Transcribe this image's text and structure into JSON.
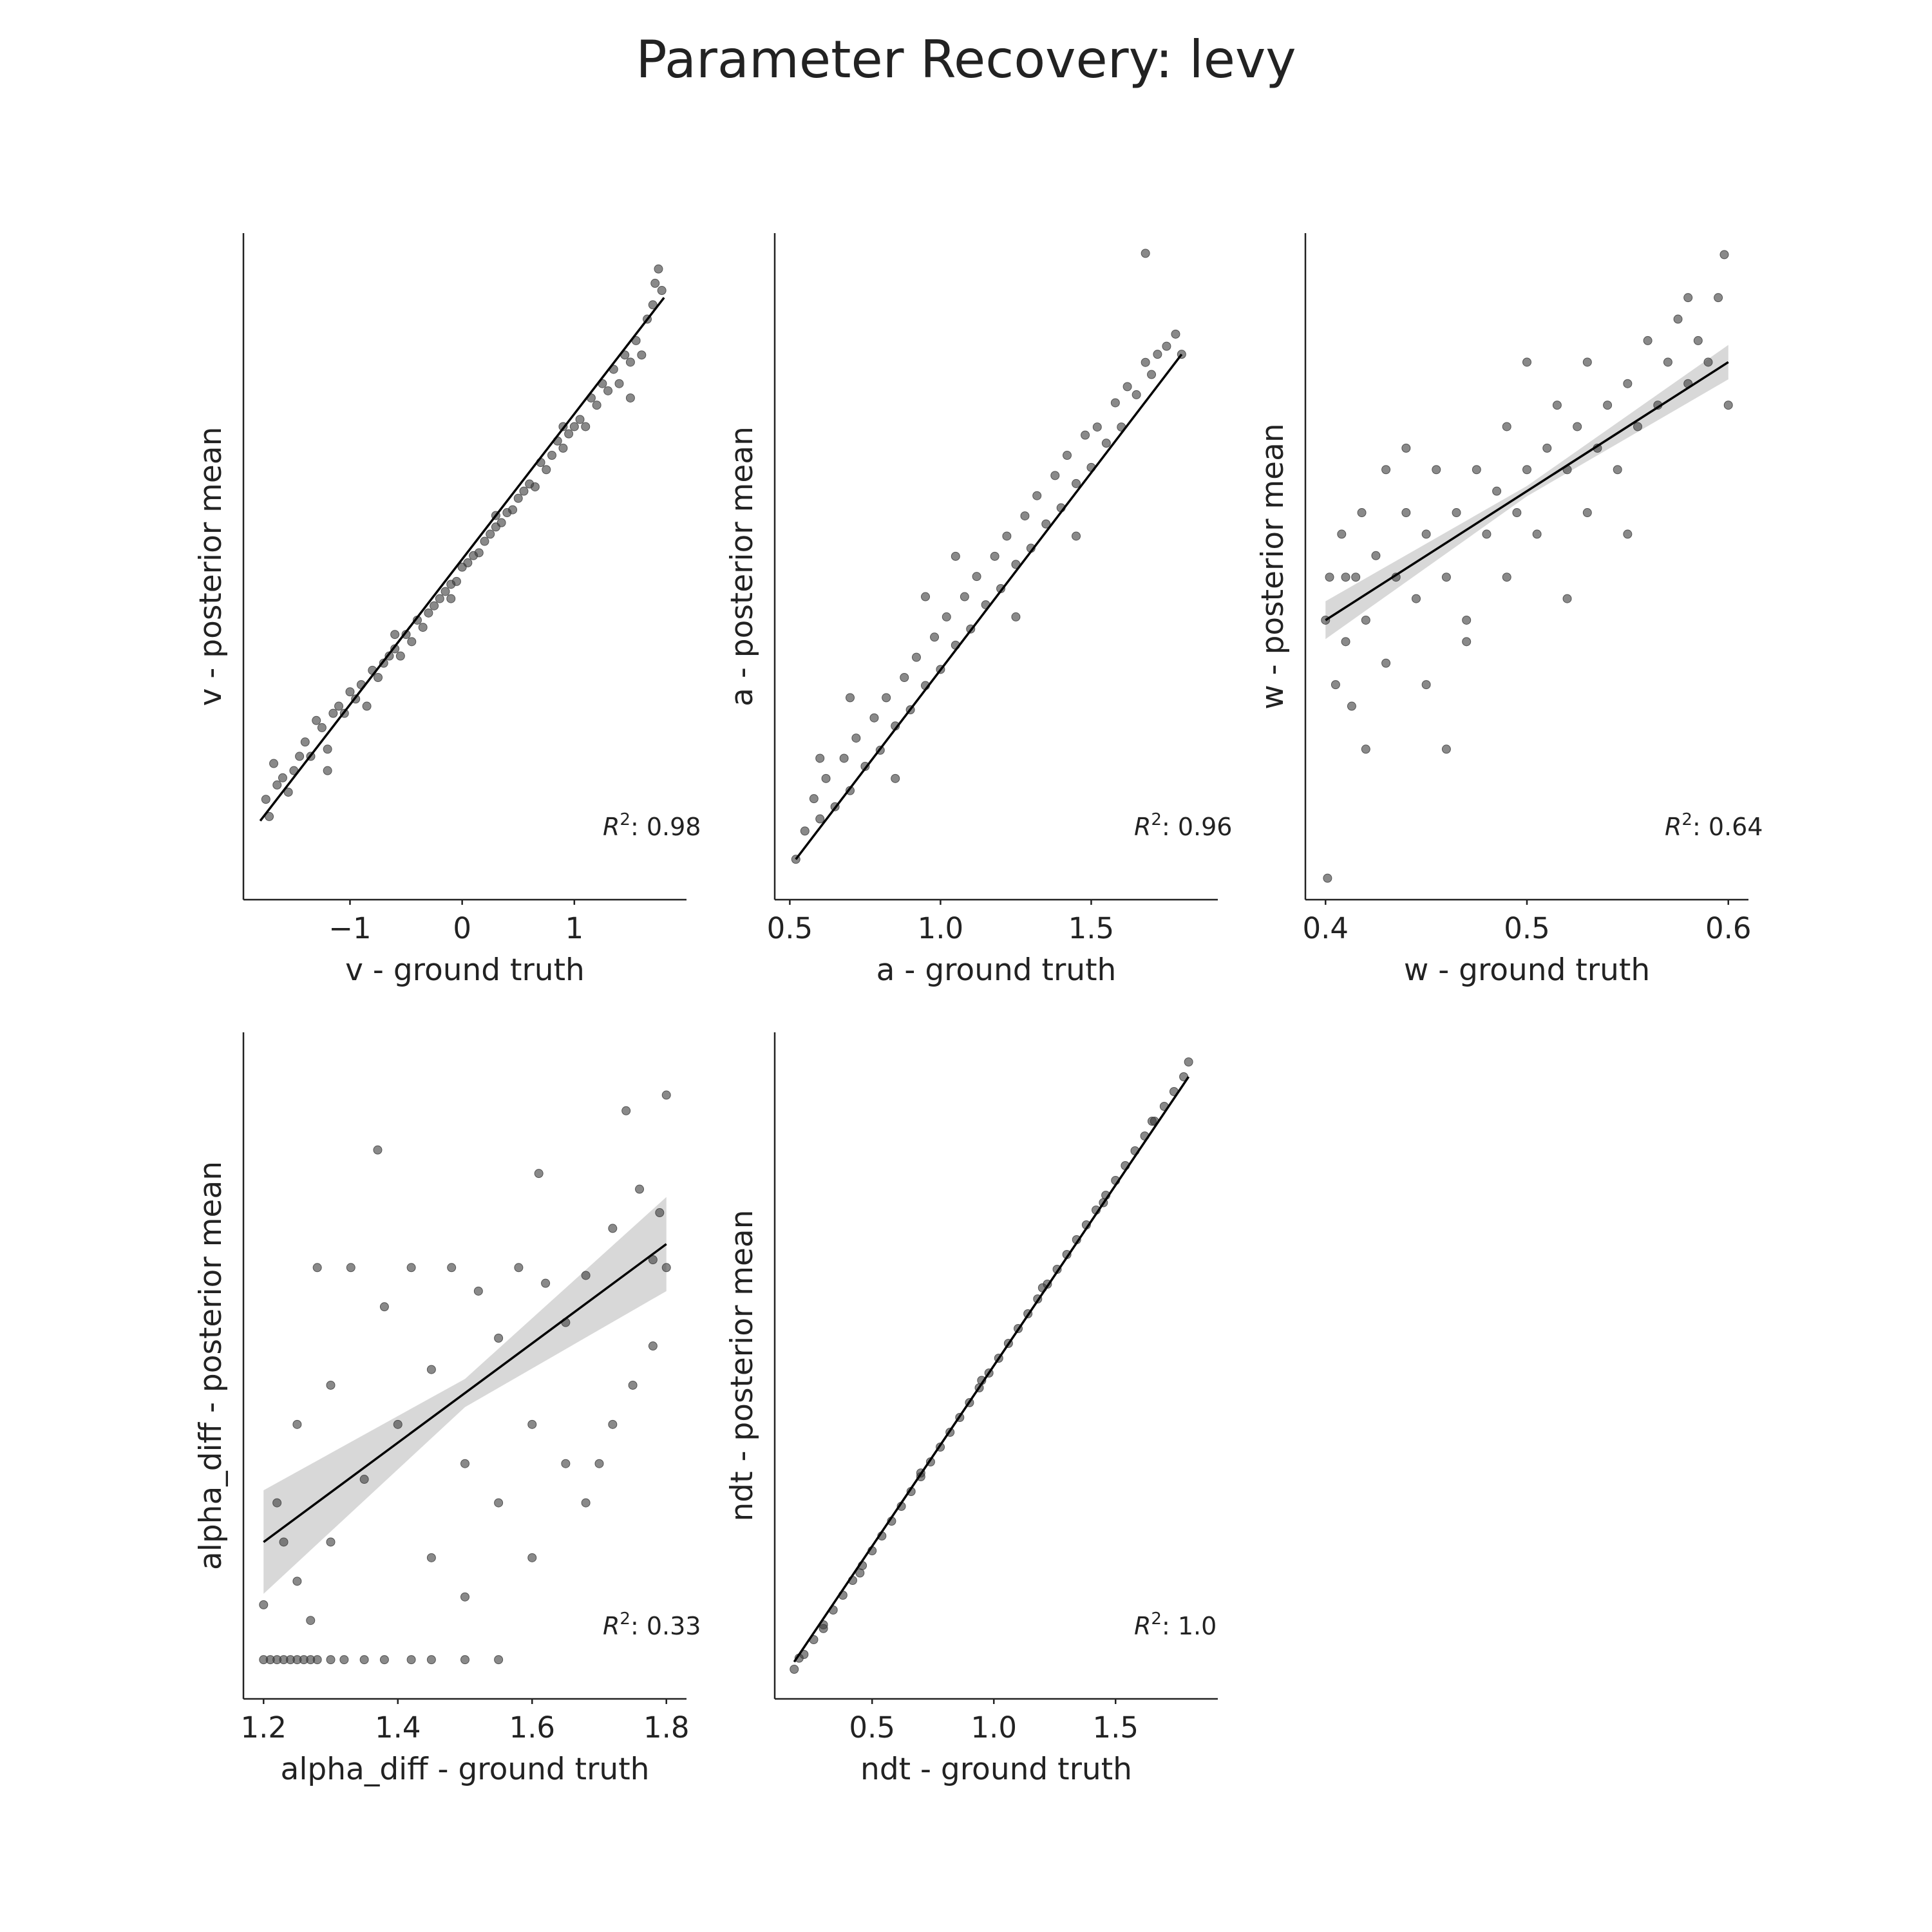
{
  "figure": {
    "title": "Parameter Recovery: levy"
  },
  "colors": {
    "points": "#3a3a3a",
    "fit_line": "#000000",
    "ci_band": "#c8c8c8",
    "axis": "#222222"
  },
  "chart_data": [
    {
      "type": "scatter",
      "name": "v",
      "xlabel": "v - ground truth",
      "ylabel": "v - posterior mean",
      "xlim": [
        -1.95,
        2.0
      ],
      "ylim": [
        -2.3,
        2.35
      ],
      "xticks": [
        -1,
        0,
        1
      ],
      "xtick_labels": [
        "−1",
        "0",
        "1"
      ],
      "r2_label": ": 0.98",
      "fit": {
        "x": [
          -1.8,
          1.8
        ],
        "y": [
          -1.75,
          1.9
        ]
      },
      "band_halfwidth": 0.0,
      "points": [
        [
          -1.75,
          -1.6
        ],
        [
          -1.72,
          -1.72
        ],
        [
          -1.68,
          -1.35
        ],
        [
          -1.65,
          -1.5
        ],
        [
          -1.6,
          -1.45
        ],
        [
          -1.55,
          -1.55
        ],
        [
          -1.5,
          -1.4
        ],
        [
          -1.45,
          -1.3
        ],
        [
          -1.4,
          -1.2
        ],
        [
          -1.35,
          -1.3
        ],
        [
          -1.3,
          -1.05
        ],
        [
          -1.25,
          -1.1
        ],
        [
          -1.2,
          -1.25
        ],
        [
          -1.15,
          -1.0
        ],
        [
          -1.1,
          -0.95
        ],
        [
          -1.05,
          -1.0
        ],
        [
          -1.0,
          -0.85
        ],
        [
          -0.95,
          -0.9
        ],
        [
          -0.9,
          -0.8
        ],
        [
          -0.85,
          -0.95
        ],
        [
          -0.8,
          -0.7
        ],
        [
          -0.75,
          -0.75
        ],
        [
          -0.7,
          -0.65
        ],
        [
          -0.65,
          -0.6
        ],
        [
          -0.6,
          -0.55
        ],
        [
          -0.55,
          -0.6
        ],
        [
          -0.5,
          -0.45
        ],
        [
          -0.45,
          -0.5
        ],
        [
          -0.4,
          -0.35
        ],
        [
          -0.35,
          -0.4
        ],
        [
          -0.3,
          -0.3
        ],
        [
          -0.25,
          -0.25
        ],
        [
          -0.2,
          -0.2
        ],
        [
          -0.15,
          -0.15
        ],
        [
          -0.1,
          -0.1
        ],
        [
          -0.05,
          -0.08
        ],
        [
          0.0,
          0.02
        ],
        [
          0.05,
          0.05
        ],
        [
          0.1,
          0.1
        ],
        [
          0.15,
          0.12
        ],
        [
          0.2,
          0.2
        ],
        [
          0.25,
          0.25
        ],
        [
          0.3,
          0.3
        ],
        [
          0.35,
          0.33
        ],
        [
          0.4,
          0.4
        ],
        [
          0.45,
          0.42
        ],
        [
          0.5,
          0.5
        ],
        [
          0.55,
          0.55
        ],
        [
          0.6,
          0.6
        ],
        [
          0.65,
          0.58
        ],
        [
          0.7,
          0.75
        ],
        [
          0.75,
          0.7
        ],
        [
          0.8,
          0.8
        ],
        [
          0.85,
          0.9
        ],
        [
          0.9,
          0.85
        ],
        [
          0.95,
          0.95
        ],
        [
          1.0,
          1.0
        ],
        [
          1.05,
          1.05
        ],
        [
          1.1,
          1.0
        ],
        [
          1.15,
          1.2
        ],
        [
          1.2,
          1.15
        ],
        [
          1.25,
          1.3
        ],
        [
          1.3,
          1.25
        ],
        [
          1.35,
          1.4
        ],
        [
          1.4,
          1.3
        ],
        [
          1.45,
          1.5
        ],
        [
          1.5,
          1.45
        ],
        [
          1.55,
          1.6
        ],
        [
          1.6,
          1.5
        ],
        [
          1.65,
          1.75
        ],
        [
          1.7,
          1.85
        ],
        [
          1.72,
          2.0
        ],
        [
          1.75,
          2.1
        ],
        [
          1.78,
          1.95
        ],
        [
          1.5,
          1.2
        ],
        [
          -0.6,
          -0.45
        ],
        [
          -0.1,
          -0.2
        ],
        [
          0.3,
          0.38
        ],
        [
          0.9,
          1.0
        ],
        [
          -1.2,
          -1.4
        ]
      ]
    },
    {
      "type": "scatter",
      "name": "a",
      "xlabel": "a - ground truth",
      "ylabel": "a - posterior mean",
      "xlim": [
        0.45,
        1.92
      ],
      "ylim": [
        0.45,
        2.1
      ],
      "xticks": [
        0.5,
        1.0,
        1.5
      ],
      "xtick_labels": [
        "0.5",
        "1.0",
        "1.5"
      ],
      "r2_label": ": 0.96",
      "fit": {
        "x": [
          0.52,
          1.8
        ],
        "y": [
          0.55,
          1.8
        ]
      },
      "band_halfwidth": 0.0,
      "points": [
        [
          0.52,
          0.55
        ],
        [
          0.55,
          0.62
        ],
        [
          0.58,
          0.7
        ],
        [
          0.6,
          0.65
        ],
        [
          0.62,
          0.75
        ],
        [
          0.65,
          0.68
        ],
        [
          0.68,
          0.8
        ],
        [
          0.7,
          0.72
        ],
        [
          0.72,
          0.85
        ],
        [
          0.75,
          0.78
        ],
        [
          0.78,
          0.9
        ],
        [
          0.8,
          0.82
        ],
        [
          0.82,
          0.95
        ],
        [
          0.85,
          0.88
        ],
        [
          0.88,
          1.0
        ],
        [
          0.9,
          0.92
        ],
        [
          0.92,
          1.05
        ],
        [
          0.95,
          0.98
        ],
        [
          0.98,
          1.1
        ],
        [
          1.0,
          1.02
        ],
        [
          1.02,
          1.15
        ],
        [
          1.05,
          1.08
        ],
        [
          1.08,
          1.2
        ],
        [
          1.1,
          1.12
        ],
        [
          1.12,
          1.25
        ],
        [
          1.15,
          1.18
        ],
        [
          1.18,
          1.3
        ],
        [
          1.2,
          1.22
        ],
        [
          1.22,
          1.35
        ],
        [
          1.25,
          1.28
        ],
        [
          1.28,
          1.4
        ],
        [
          1.3,
          1.32
        ],
        [
          1.32,
          1.45
        ],
        [
          1.35,
          1.38
        ],
        [
          1.38,
          1.5
        ],
        [
          1.4,
          1.42
        ],
        [
          1.42,
          1.55
        ],
        [
          1.45,
          1.48
        ],
        [
          1.48,
          1.6
        ],
        [
          1.5,
          1.52
        ],
        [
          1.52,
          1.62
        ],
        [
          1.55,
          1.58
        ],
        [
          1.58,
          1.68
        ],
        [
          1.6,
          1.62
        ],
        [
          1.62,
          1.72
        ],
        [
          1.65,
          1.7
        ],
        [
          1.68,
          1.78
        ],
        [
          1.7,
          1.75
        ],
        [
          1.72,
          1.8
        ],
        [
          1.75,
          1.82
        ],
        [
          1.78,
          1.85
        ],
        [
          1.8,
          1.8
        ],
        [
          1.68,
          2.05
        ],
        [
          0.6,
          0.8
        ],
        [
          0.7,
          0.95
        ],
        [
          0.85,
          0.75
        ],
        [
          1.05,
          1.3
        ],
        [
          1.25,
          1.15
        ],
        [
          0.95,
          1.2
        ],
        [
          1.45,
          1.35
        ]
      ]
    },
    {
      "type": "scatter",
      "name": "w",
      "xlabel": "w - ground truth",
      "ylabel": "w - posterior mean",
      "xlim": [
        0.39,
        0.61
      ],
      "ylim": [
        0.35,
        0.66
      ],
      "xticks": [
        0.4,
        0.5,
        0.6
      ],
      "xtick_labels": [
        "0.4",
        "0.5",
        "0.6"
      ],
      "r2_label": ": 0.64",
      "fit": {
        "x": [
          0.4,
          0.6
        ],
        "y": [
          0.48,
          0.6
        ]
      },
      "band_halfwidth": 0.004,
      "points": [
        [
          0.4,
          0.48
        ],
        [
          0.401,
          0.36
        ],
        [
          0.402,
          0.5
        ],
        [
          0.405,
          0.45
        ],
        [
          0.408,
          0.52
        ],
        [
          0.41,
          0.47
        ],
        [
          0.413,
          0.44
        ],
        [
          0.415,
          0.5
        ],
        [
          0.418,
          0.53
        ],
        [
          0.42,
          0.48
        ],
        [
          0.425,
          0.51
        ],
        [
          0.43,
          0.46
        ],
        [
          0.435,
          0.5
        ],
        [
          0.44,
          0.53
        ],
        [
          0.445,
          0.49
        ],
        [
          0.45,
          0.52
        ],
        [
          0.455,
          0.55
        ],
        [
          0.46,
          0.5
        ],
        [
          0.465,
          0.53
        ],
        [
          0.47,
          0.48
        ],
        [
          0.475,
          0.55
        ],
        [
          0.48,
          0.52
        ],
        [
          0.485,
          0.54
        ],
        [
          0.49,
          0.57
        ],
        [
          0.495,
          0.53
        ],
        [
          0.5,
          0.55
        ],
        [
          0.505,
          0.52
        ],
        [
          0.51,
          0.56
        ],
        [
          0.515,
          0.58
        ],
        [
          0.52,
          0.55
        ],
        [
          0.525,
          0.57
        ],
        [
          0.53,
          0.6
        ],
        [
          0.535,
          0.56
        ],
        [
          0.54,
          0.58
        ],
        [
          0.545,
          0.55
        ],
        [
          0.55,
          0.59
        ],
        [
          0.555,
          0.57
        ],
        [
          0.56,
          0.61
        ],
        [
          0.565,
          0.58
        ],
        [
          0.57,
          0.6
        ],
        [
          0.575,
          0.62
        ],
        [
          0.58,
          0.59
        ],
        [
          0.585,
          0.61
        ],
        [
          0.59,
          0.6
        ],
        [
          0.595,
          0.63
        ],
        [
          0.598,
          0.65
        ],
        [
          0.6,
          0.58
        ],
        [
          0.45,
          0.45
        ],
        [
          0.44,
          0.56
        ],
        [
          0.52,
          0.49
        ],
        [
          0.47,
          0.47
        ],
        [
          0.46,
          0.42
        ],
        [
          0.42,
          0.42
        ],
        [
          0.5,
          0.6
        ],
        [
          0.55,
          0.52
        ],
        [
          0.58,
          0.63
        ],
        [
          0.43,
          0.55
        ],
        [
          0.49,
          0.5
        ],
        [
          0.53,
          0.53
        ],
        [
          0.41,
          0.5
        ]
      ]
    },
    {
      "type": "scatter",
      "name": "alpha_diff",
      "xlabel": "alpha_diff - ground truth",
      "ylabel": "alpha_diff - posterior mean",
      "xlim": [
        1.17,
        1.83
      ],
      "ylim": [
        1.2,
        2.05
      ],
      "xticks": [
        1.2,
        1.4,
        1.6,
        1.8
      ],
      "xtick_labels": [
        "1.2",
        "1.4",
        "1.6",
        "1.8"
      ],
      "r2_label": ": 0.33",
      "fit": {
        "x": [
          1.2,
          1.8
        ],
        "y": [
          1.4,
          1.78
        ]
      },
      "band_halfwidth": 0.03,
      "points": [
        [
          1.2,
          1.25
        ],
        [
          1.21,
          1.25
        ],
        [
          1.22,
          1.25
        ],
        [
          1.23,
          1.25
        ],
        [
          1.24,
          1.25
        ],
        [
          1.25,
          1.25
        ],
        [
          1.26,
          1.25
        ],
        [
          1.27,
          1.25
        ],
        [
          1.28,
          1.25
        ],
        [
          1.3,
          1.25
        ],
        [
          1.32,
          1.25
        ],
        [
          1.35,
          1.25
        ],
        [
          1.38,
          1.25
        ],
        [
          1.42,
          1.25
        ],
        [
          1.45,
          1.25
        ],
        [
          1.5,
          1.25
        ],
        [
          1.55,
          1.25
        ],
        [
          1.22,
          1.45
        ],
        [
          1.25,
          1.55
        ],
        [
          1.28,
          1.75
        ],
        [
          1.3,
          1.6
        ],
        [
          1.33,
          1.75
        ],
        [
          1.35,
          1.48
        ],
        [
          1.38,
          1.7
        ],
        [
          1.4,
          1.55
        ],
        [
          1.42,
          1.75
        ],
        [
          1.45,
          1.62
        ],
        [
          1.48,
          1.75
        ],
        [
          1.5,
          1.5
        ],
        [
          1.52,
          1.72
        ],
        [
          1.55,
          1.66
        ],
        [
          1.58,
          1.75
        ],
        [
          1.6,
          1.55
        ],
        [
          1.62,
          1.73
        ],
        [
          1.65,
          1.68
        ],
        [
          1.68,
          1.74
        ],
        [
          1.7,
          1.5
        ],
        [
          1.72,
          1.8
        ],
        [
          1.74,
          1.95
        ],
        [
          1.76,
          1.85
        ],
        [
          1.78,
          1.76
        ],
        [
          1.8,
          1.97
        ],
        [
          1.79,
          1.82
        ],
        [
          1.37,
          1.9
        ],
        [
          1.61,
          1.87
        ],
        [
          1.25,
          1.35
        ],
        [
          1.3,
          1.4
        ],
        [
          1.45,
          1.38
        ],
        [
          1.6,
          1.38
        ],
        [
          1.68,
          1.45
        ],
        [
          1.75,
          1.6
        ],
        [
          1.8,
          1.75
        ],
        [
          1.2,
          1.32
        ],
        [
          1.23,
          1.4
        ],
        [
          1.27,
          1.3
        ],
        [
          1.5,
          1.33
        ],
        [
          1.55,
          1.45
        ],
        [
          1.65,
          1.5
        ],
        [
          1.72,
          1.55
        ],
        [
          1.78,
          1.65
        ]
      ]
    },
    {
      "type": "scatter",
      "name": "ndt",
      "xlabel": "ndt - ground truth",
      "ylabel": "ndt - posterior mean",
      "xlim": [
        0.1,
        1.92
      ],
      "ylim": [
        0.1,
        1.9
      ],
      "xticks": [
        0.5,
        1.0,
        1.5
      ],
      "xtick_labels": [
        "0.5",
        "1.0",
        "1.5"
      ],
      "r2_label": ": 1.0",
      "fit": {
        "x": [
          0.18,
          1.8
        ],
        "y": [
          0.2,
          1.78
        ]
      },
      "band_halfwidth": 0.0,
      "points": [
        [
          0.18,
          0.18
        ],
        [
          0.22,
          0.22
        ],
        [
          0.26,
          0.26
        ],
        [
          0.3,
          0.3
        ],
        [
          0.34,
          0.34
        ],
        [
          0.38,
          0.38
        ],
        [
          0.42,
          0.42
        ],
        [
          0.46,
          0.46
        ],
        [
          0.5,
          0.5
        ],
        [
          0.54,
          0.54
        ],
        [
          0.58,
          0.58
        ],
        [
          0.62,
          0.62
        ],
        [
          0.66,
          0.66
        ],
        [
          0.7,
          0.7
        ],
        [
          0.74,
          0.74
        ],
        [
          0.78,
          0.78
        ],
        [
          0.82,
          0.82
        ],
        [
          0.86,
          0.86
        ],
        [
          0.9,
          0.9
        ],
        [
          0.94,
          0.94
        ],
        [
          0.98,
          0.98
        ],
        [
          1.02,
          1.02
        ],
        [
          1.06,
          1.06
        ],
        [
          1.1,
          1.1
        ],
        [
          1.14,
          1.14
        ],
        [
          1.18,
          1.18
        ],
        [
          1.22,
          1.22
        ],
        [
          1.26,
          1.26
        ],
        [
          1.3,
          1.3
        ],
        [
          1.34,
          1.34
        ],
        [
          1.38,
          1.38
        ],
        [
          1.42,
          1.42
        ],
        [
          1.46,
          1.46
        ],
        [
          1.5,
          1.5
        ],
        [
          1.54,
          1.54
        ],
        [
          1.58,
          1.58
        ],
        [
          1.62,
          1.62
        ],
        [
          1.66,
          1.66
        ],
        [
          1.7,
          1.7
        ],
        [
          1.74,
          1.74
        ],
        [
          1.78,
          1.78
        ],
        [
          1.8,
          1.82
        ],
        [
          0.2,
          0.21
        ],
        [
          0.45,
          0.44
        ],
        [
          0.7,
          0.71
        ],
        [
          0.95,
          0.96
        ],
        [
          1.2,
          1.21
        ],
        [
          1.45,
          1.44
        ],
        [
          1.65,
          1.66
        ],
        [
          0.3,
          0.29
        ]
      ]
    }
  ]
}
